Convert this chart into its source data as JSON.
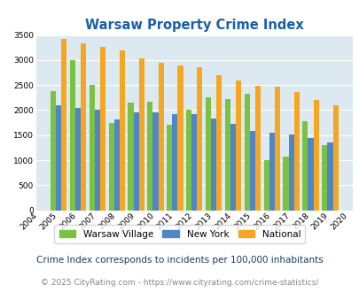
{
  "title": "Warsaw Property Crime Index",
  "years": [
    2004,
    2005,
    2006,
    2007,
    2008,
    2009,
    2010,
    2011,
    2012,
    2013,
    2014,
    2015,
    2016,
    2017,
    2018,
    2019,
    2020
  ],
  "warsaw_village": [
    null,
    2380,
    3000,
    2500,
    1750,
    2150,
    2160,
    1700,
    2000,
    2260,
    2220,
    2330,
    1000,
    1080,
    1780,
    1300,
    null
  ],
  "new_york": [
    null,
    2100,
    2050,
    2000,
    1820,
    1950,
    1950,
    1920,
    1920,
    1830,
    1720,
    1590,
    1550,
    1510,
    1450,
    1360,
    null
  ],
  "national": [
    null,
    3420,
    3330,
    3260,
    3200,
    3040,
    2950,
    2900,
    2850,
    2700,
    2590,
    2490,
    2460,
    2370,
    2200,
    2100,
    null
  ],
  "warsaw_color": "#7bc142",
  "newyork_color": "#4f86c6",
  "national_color": "#f5a623",
  "bg_color": "#dce9f0",
  "grid_color": "#ffffff",
  "ylim": [
    0,
    3500
  ],
  "yticks": [
    0,
    500,
    1000,
    1500,
    2000,
    2500,
    3000,
    3500
  ],
  "footnote1": "Crime Index corresponds to incidents per 100,000 inhabitants",
  "footnote2": "© 2025 CityRating.com - https://www.cityrating.com/crime-statistics/",
  "legend_labels": [
    "Warsaw Village",
    "New York",
    "National"
  ],
  "title_color": "#1a5fa8",
  "footnote1_color": "#1a3a6a",
  "footnote2_color": "#888888"
}
